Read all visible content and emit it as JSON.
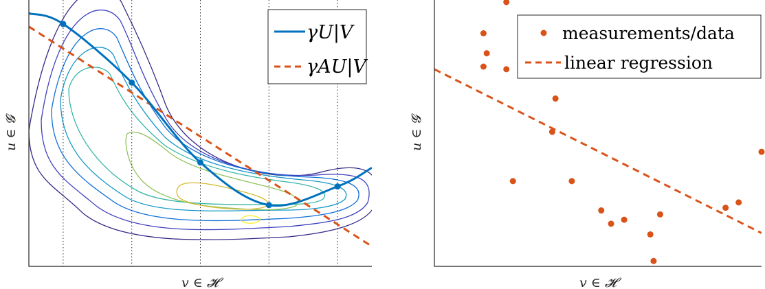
{
  "chart_data": [
    {
      "type": "line",
      "title": "",
      "xlabel": "v ∈ 𝓗",
      "ylabel": "u ∈ 𝓖",
      "xlim": [
        0,
        10
      ],
      "ylim": [
        0,
        10
      ],
      "ticks": "none",
      "grid": false,
      "legend": "top-right",
      "vertical_dotted_lines_x": [
        1,
        3,
        5,
        7,
        9
      ],
      "contours": {
        "description": "filled-level contour rings of a joint density",
        "colormap": "parula",
        "level_count": 7
      },
      "series": [
        {
          "name": "γU|V",
          "style": "solid",
          "color": "#0072BD",
          "x": [
            0,
            1,
            3,
            5,
            7,
            9,
            10
          ],
          "y": [
            9.5,
            9.1,
            6.9,
            3.9,
            2.3,
            3.0,
            3.7
          ]
        },
        {
          "name": "γAU|V",
          "style": "dashed",
          "color": "#D95319",
          "x": [
            0,
            10
          ],
          "y": [
            9.0,
            0.75
          ]
        }
      ],
      "markers": {
        "series": "γU|V",
        "x": [
          1,
          3,
          5,
          7,
          9
        ],
        "y": [
          9.1,
          6.9,
          3.9,
          2.3,
          3.0
        ]
      }
    },
    {
      "type": "scatter",
      "title": "",
      "xlabel": "v ∈ 𝓗",
      "ylabel": "u ∈ 𝓖",
      "xlim": [
        0,
        10
      ],
      "ylim": [
        0,
        10
      ],
      "ticks": "none",
      "grid": false,
      "legend": "top-right",
      "series": [
        {
          "name": "measurements/data",
          "color": "#D95319",
          "x": [
            1.5,
            1.6,
            1.5,
            2.2,
            2.2,
            2.4,
            3.7,
            3.6,
            4.2,
            5.1,
            5.4,
            5.8,
            6.6,
            6.7,
            6.9,
            8.9,
            9.3,
            10.0
          ],
          "y": [
            8.75,
            8.0,
            7.5,
            7.4,
            10.5,
            3.2,
            6.3,
            5.05,
            3.2,
            2.1,
            1.6,
            1.75,
            1.2,
            0.2,
            1.95,
            2.2,
            2.4,
            4.3
          ]
        },
        {
          "name": "linear regression",
          "style": "dashed",
          "color": "#D95319",
          "x": [
            0,
            10
          ],
          "y": [
            7.4,
            1.25
          ]
        }
      ]
    }
  ]
}
